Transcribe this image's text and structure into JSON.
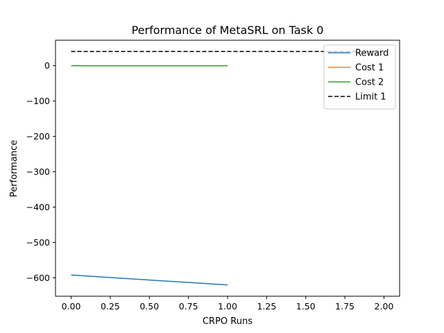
{
  "chart_data": {
    "type": "line",
    "title": "Performance of MetaSRL on Task 0",
    "xlabel": "CRPO Runs",
    "ylabel": "Performance",
    "xlim": [
      -0.1,
      2.1
    ],
    "ylim": [
      -652,
      72
    ],
    "xticks": [
      0.0,
      0.25,
      0.5,
      0.75,
      1.0,
      1.25,
      1.5,
      1.75,
      2.0
    ],
    "xtick_labels": [
      "0.00",
      "0.25",
      "0.50",
      "0.75",
      "1.00",
      "1.25",
      "1.50",
      "1.75",
      "2.00"
    ],
    "yticks": [
      0,
      -100,
      -200,
      -300,
      -400,
      -500,
      -600
    ],
    "ytick_labels": [
      "0",
      "−100",
      "−200",
      "−300",
      "−400",
      "−500",
      "−600"
    ],
    "grid": false,
    "legend_position": "top-right",
    "series": [
      {
        "name": "Reward",
        "color": "#1f77b4",
        "style": "solid",
        "x": [
          0,
          1
        ],
        "y": [
          -592,
          -620
        ]
      },
      {
        "name": "Cost 1",
        "color": "#ff7f0e",
        "style": "solid",
        "x": [
          0,
          1
        ],
        "y": [
          0,
          0
        ]
      },
      {
        "name": "Cost 2",
        "color": "#2ca02c",
        "style": "solid",
        "x": [
          0,
          1
        ],
        "y": [
          0,
          0
        ]
      },
      {
        "name": "Limit 1",
        "color": "#000000",
        "style": "dashed",
        "x": [
          0,
          2
        ],
        "y": [
          40,
          40
        ]
      }
    ]
  }
}
